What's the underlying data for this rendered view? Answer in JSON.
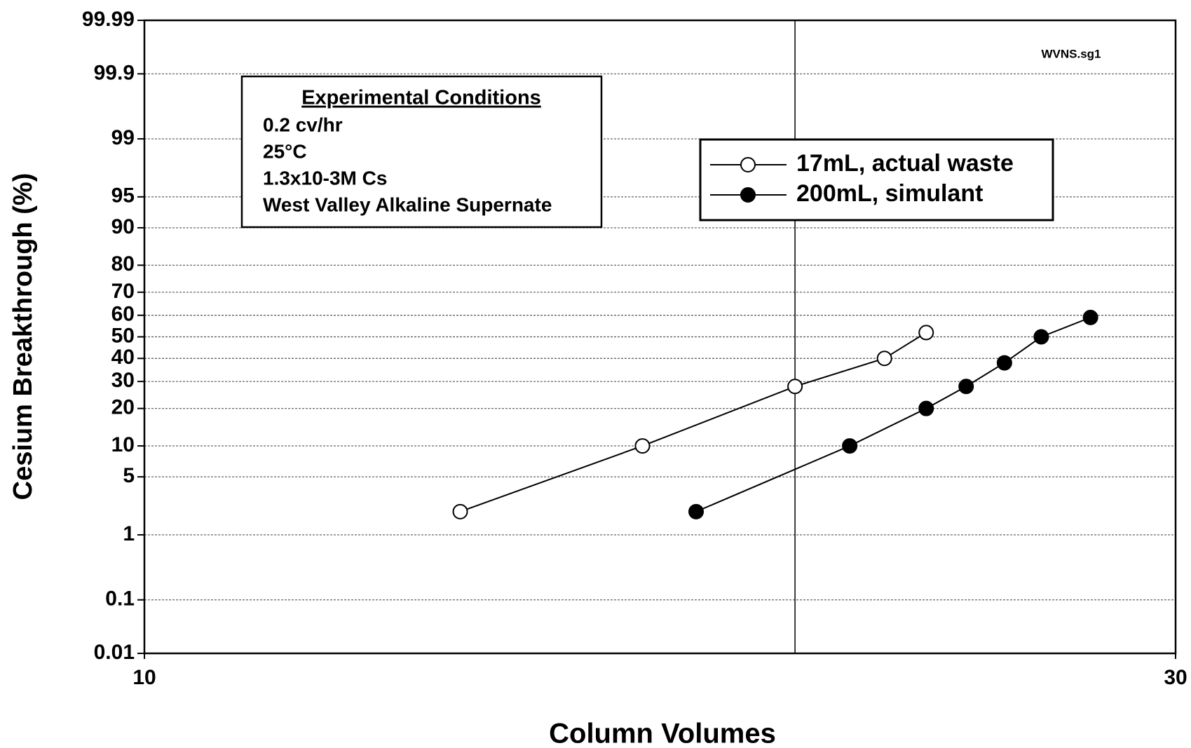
{
  "chart_data": {
    "type": "line",
    "x_label": "Column Volumes",
    "y_label": "Cesium Breakthrough (%)",
    "annotation": "WVNS.sg1",
    "text_box": {
      "title": "Experimental Conditions",
      "lines": [
        "0.2 cv/hr",
        "25°C",
        "1.3x10-3M Cs",
        "West Valley Alkaline Supernate"
      ]
    },
    "xscale": "log",
    "yscale": "probability",
    "xlim": [
      10,
      30
    ],
    "xticks": [
      10,
      30
    ],
    "xgrid": [
      20
    ],
    "ylim": [
      0.01,
      99.99
    ],
    "yticks": [
      0.01,
      0.1,
      1,
      5,
      10,
      20,
      30,
      40,
      50,
      60,
      70,
      80,
      90,
      95,
      99,
      99.9,
      99.99
    ],
    "grid": true,
    "legend": "upper right",
    "series": [
      {
        "name": "17mL, actual waste",
        "color": "#000000",
        "marker": "open",
        "x": [
          14,
          17,
          20,
          22,
          23
        ],
        "values": [
          2,
          10,
          28,
          40,
          52
        ]
      },
      {
        "name": "200mL, simulant",
        "color": "#000000",
        "marker": "filled",
        "x": [
          18,
          21.2,
          23,
          24,
          25,
          26,
          27.4
        ],
        "values": [
          2,
          10,
          20,
          28,
          38,
          50,
          59
        ]
      }
    ]
  }
}
